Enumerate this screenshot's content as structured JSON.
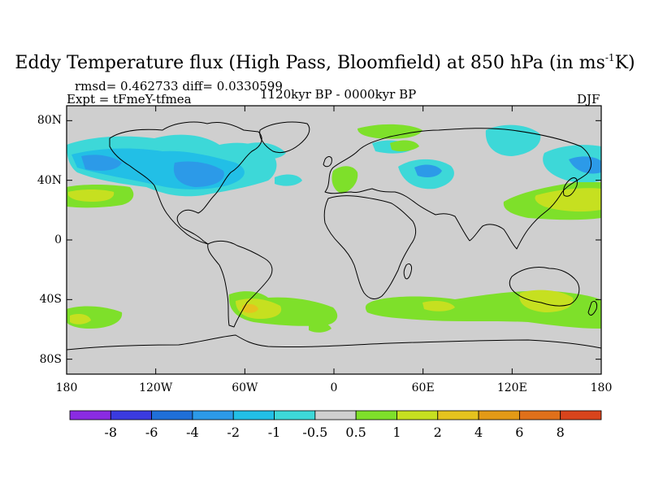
{
  "title": "Eddy Temperature flux (High Pass, Bloomfield) at 850 hPa (in ms",
  "title_sup": "-1",
  "title_end": "K)",
  "stats": "rmsd= 0.462733 diff= 0.0330599",
  "expt": "Expt = tFmeY-tfmea",
  "period": "1120kyr BP - 0000kyr BP",
  "season": "DJF",
  "map": {
    "land_color": "#cfcfcf",
    "lat_ticks": [
      {
        "value": 80,
        "label": "80N"
      },
      {
        "value": 40,
        "label": "40N"
      },
      {
        "value": 0,
        "label": "0"
      },
      {
        "value": -40,
        "label": "40S"
      },
      {
        "value": -80,
        "label": "80S"
      }
    ],
    "lon_ticks": [
      {
        "value": -180,
        "label": "180"
      },
      {
        "value": -120,
        "label": "120W"
      },
      {
        "value": -60,
        "label": "60W"
      },
      {
        "value": 0,
        "label": "0"
      },
      {
        "value": 60,
        "label": "60E"
      },
      {
        "value": 120,
        "label": "120E"
      },
      {
        "value": 180,
        "label": "180"
      }
    ],
    "lat_range": [
      -90,
      90
    ],
    "lon_range": [
      -180,
      180
    ]
  },
  "colorbar": {
    "colors": [
      "#8a2be2",
      "#3a3ae0",
      "#1f6fd8",
      "#2c9ae8",
      "#22bfe6",
      "#3dd8d8",
      "#cfcfcf",
      "#7ee02a",
      "#c6e020",
      "#e5c31e",
      "#e39a16",
      "#e0701a",
      "#d8441c"
    ],
    "labels": [
      "-8",
      "-6",
      "-4",
      "-2",
      "-1",
      "-0.5",
      "0.5",
      "1",
      "2",
      "4",
      "6",
      "8"
    ]
  },
  "palette": {
    "cyan": "#3dd8d8",
    "lightblue": "#22bfe6",
    "blue": "#2c9ae8",
    "green": "#7ee02a",
    "yellowgreen": "#c6e020",
    "yellow": "#e5c31e"
  }
}
